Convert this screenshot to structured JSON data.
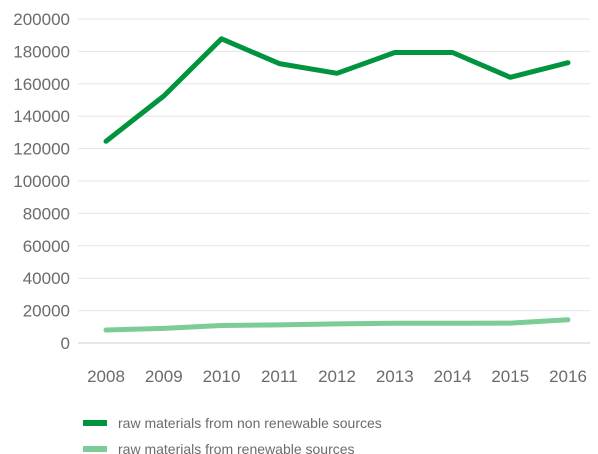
{
  "chart_data": {
    "type": "line",
    "title": "",
    "xlabel": "",
    "ylabel": "",
    "x": [
      "2008",
      "2009",
      "2010",
      "2011",
      "2012",
      "2013",
      "2014",
      "2015",
      "2016"
    ],
    "ylim": [
      0,
      200000
    ],
    "yticks": [
      "0",
      "20000",
      "40000",
      "60000",
      "80000",
      "100000",
      "120000",
      "140000",
      "160000",
      "180000",
      "200000"
    ],
    "grid": "horizontal",
    "legend_position": "bottom-left",
    "series": [
      {
        "name": "raw materials from non renewable sources",
        "color": "#00943f",
        "values": [
          124500,
          152500,
          187800,
          172500,
          166500,
          179300,
          179300,
          164000,
          173000
        ]
      },
      {
        "name": "raw materials from renewable sources",
        "color": "#7ccc95",
        "values": [
          8000,
          9000,
          10800,
          11200,
          11800,
          12200,
          12200,
          12300,
          14300
        ]
      }
    ]
  }
}
